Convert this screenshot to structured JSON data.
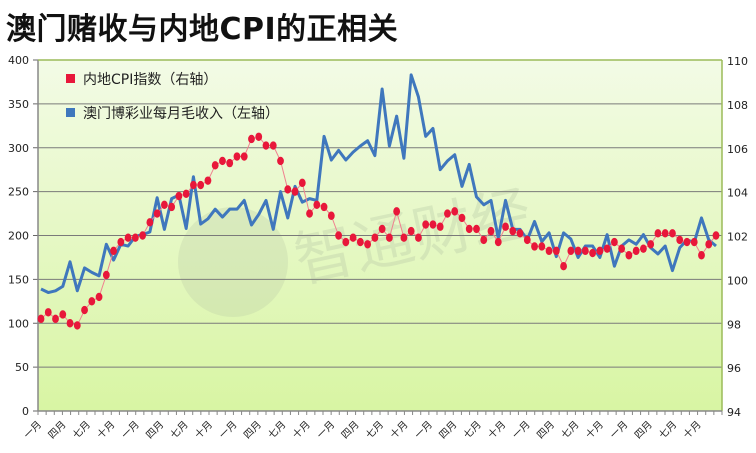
{
  "title": "澳门赌收与内地CPI的正相关",
  "legend": {
    "cpi_label": "内地CPI指数（右轴）",
    "gaming_label": "澳门博彩业每月毛收入（左轴）"
  },
  "watermark": "智通财经",
  "colors": {
    "cpi": "#e8173a",
    "gaming": "#3f77bd",
    "plot_bg_top": "#f3fbe6",
    "plot_bg_bottom": "#d8f5a3",
    "grid": "#7a7a7a",
    "border": "#9bbb59"
  },
  "chart_data": {
    "type": "line",
    "title": "澳门赌收与内地CPI的正相关",
    "xlabel": "",
    "ylabel_left": "澳门博彩业每月毛收入",
    "ylabel_right": "内地CPI指数",
    "ylim_left": [
      0,
      400
    ],
    "ylim_right": [
      94,
      110
    ],
    "yticks_left": [
      0,
      50,
      100,
      150,
      200,
      250,
      300,
      350,
      400
    ],
    "yticks_right": [
      94,
      96,
      98,
      100,
      102,
      104,
      106,
      108,
      110
    ],
    "x_tick_labels": [
      "一月",
      "四月",
      "七月",
      "十月",
      "一月",
      "四月",
      "七月",
      "十月",
      "一月",
      "四月",
      "七月",
      "十月",
      "一月",
      "四月",
      "七月",
      "十月",
      "一月",
      "四月",
      "七月",
      "十月",
      "一月",
      "四月",
      "七月",
      "十月",
      "一月",
      "四月",
      "七月",
      "十月"
    ],
    "grid": true,
    "legend_position": "top-left inside",
    "series": [
      {
        "name": "内地CPI指数（右轴）",
        "axis": "right",
        "style": "line-with-markers",
        "values": [
          98.2,
          98.5,
          98.2,
          98.4,
          98.0,
          97.9,
          98.6,
          99.0,
          99.2,
          100.2,
          101.3,
          101.7,
          101.9,
          101.9,
          102.0,
          102.6,
          103.0,
          103.4,
          103.3,
          103.8,
          103.9,
          104.3,
          104.3,
          104.5,
          105.2,
          105.4,
          105.3,
          105.6,
          105.6,
          106.4,
          106.5,
          106.1,
          106.1,
          105.4,
          104.1,
          104.0,
          104.4,
          103.0,
          103.4,
          103.3,
          102.9,
          102.0,
          101.7,
          101.9,
          101.7,
          101.6,
          101.9,
          102.3,
          101.9,
          103.1,
          101.9,
          102.2,
          101.9,
          102.5,
          102.5,
          102.4,
          103.0,
          103.1,
          102.8,
          102.3,
          102.3,
          101.8,
          102.2,
          101.7,
          102.4,
          102.2,
          102.1,
          101.8,
          101.5,
          101.5,
          101.3,
          101.3,
          100.6,
          101.3,
          101.3,
          101.3,
          101.2,
          101.3,
          101.4,
          101.7,
          101.4,
          101.1,
          101.3,
          101.4,
          101.6,
          102.1,
          102.1,
          102.1,
          101.8,
          101.7,
          101.7,
          101.1,
          101.6,
          102.0
        ]
      },
      {
        "name": "澳门博彩业每月毛收入（左轴）",
        "axis": "left",
        "style": "line",
        "values": [
          139,
          135,
          137,
          142,
          170,
          137,
          163,
          158,
          154,
          190,
          172,
          190,
          188,
          199,
          201,
          204,
          243,
          207,
          242,
          246,
          208,
          267,
          213,
          219,
          230,
          221,
          230,
          230,
          240,
          212,
          224,
          240,
          207,
          250,
          220,
          256,
          238,
          242,
          240,
          313,
          286,
          297,
          286,
          295,
          302,
          308,
          291,
          367,
          302,
          336,
          288,
          383,
          358,
          313,
          322,
          275,
          285,
          292,
          256,
          281,
          244,
          235,
          240,
          197,
          240,
          207,
          207,
          195,
          216,
          193,
          203,
          176,
          203,
          196,
          175,
          188,
          188,
          175,
          201,
          165,
          188,
          195,
          190,
          201,
          186,
          179,
          188,
          160,
          186,
          195,
          192,
          220,
          195,
          188
        ]
      }
    ]
  }
}
